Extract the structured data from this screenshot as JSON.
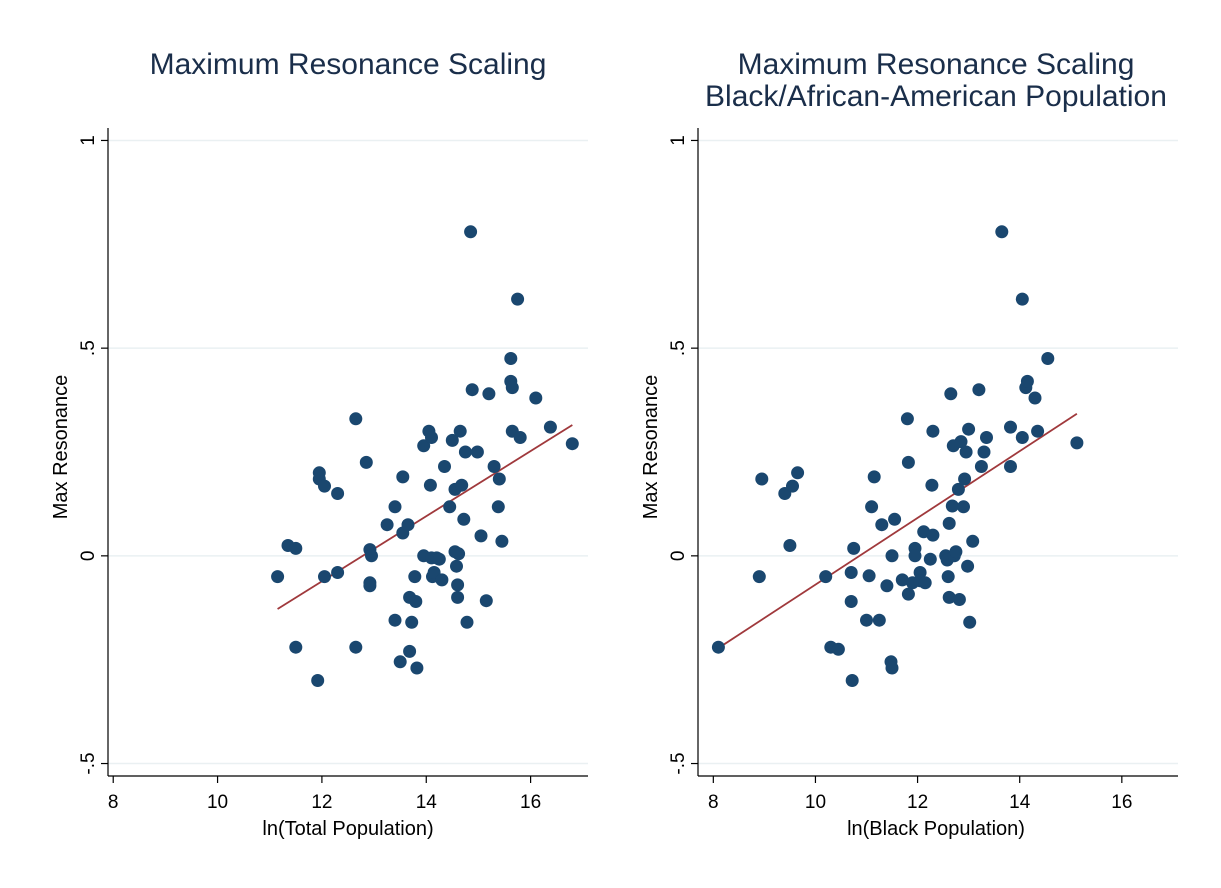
{
  "chart_data": [
    {
      "type": "scatter",
      "title": "Maximum Resonance Scaling",
      "subtitle": "",
      "xlabel": "ln(Total Population)",
      "ylabel": "Max Resonance",
      "xlim": [
        7.9,
        17.1
      ],
      "ylim": [
        -0.53,
        1.03
      ],
      "xticks": [
        8,
        10,
        12,
        14,
        16
      ],
      "xtick_labels": [
        "8",
        "10",
        "12",
        "14",
        "16"
      ],
      "yticks": [
        -0.5,
        0,
        0.5,
        1
      ],
      "ytick_labels": [
        "-.5",
        "0",
        ".5",
        "1"
      ],
      "grid": true,
      "colors": {
        "points": "#1a476f",
        "fit": "#a0393c"
      },
      "points": [
        [
          11.15,
          -0.05
        ],
        [
          11.35,
          0.025
        ],
        [
          11.5,
          0.018
        ],
        [
          11.5,
          -0.22
        ],
        [
          11.95,
          0.2
        ],
        [
          11.95,
          0.185
        ],
        [
          12.05,
          0.168
        ],
        [
          12.05,
          -0.05
        ],
        [
          12.3,
          0.15
        ],
        [
          12.3,
          -0.04
        ],
        [
          11.92,
          -0.3
        ],
        [
          12.65,
          0.33
        ],
        [
          12.65,
          -0.22
        ],
        [
          12.85,
          0.225
        ],
        [
          12.92,
          -0.065
        ],
        [
          12.92,
          -0.072
        ],
        [
          12.92,
          0.015
        ],
        [
          12.95,
          0.0
        ],
        [
          13.25,
          0.075
        ],
        [
          13.4,
          0.118
        ],
        [
          13.4,
          -0.155
        ],
        [
          13.5,
          -0.255
        ],
        [
          13.55,
          0.19
        ],
        [
          13.55,
          0.055
        ],
        [
          13.65,
          0.075
        ],
        [
          13.68,
          -0.1
        ],
        [
          13.68,
          -0.23
        ],
        [
          13.72,
          -0.16
        ],
        [
          13.78,
          -0.05
        ],
        [
          13.8,
          -0.11
        ],
        [
          13.82,
          -0.27
        ],
        [
          13.95,
          0.265
        ],
        [
          13.95,
          0.0
        ],
        [
          14.05,
          0.3
        ],
        [
          14.08,
          0.17
        ],
        [
          14.1,
          0.285
        ],
        [
          14.1,
          -0.005
        ],
        [
          14.12,
          -0.05
        ],
        [
          14.15,
          -0.04
        ],
        [
          14.2,
          -0.005
        ],
        [
          14.25,
          -0.008
        ],
        [
          14.3,
          -0.058
        ],
        [
          14.35,
          0.215
        ],
        [
          14.45,
          0.118
        ],
        [
          14.5,
          0.278
        ],
        [
          14.55,
          0.16
        ],
        [
          14.55,
          0.01
        ],
        [
          14.58,
          -0.025
        ],
        [
          14.6,
          -0.07
        ],
        [
          14.6,
          -0.1
        ],
        [
          14.62,
          0.005
        ],
        [
          14.65,
          0.3
        ],
        [
          14.68,
          0.17
        ],
        [
          14.72,
          0.088
        ],
        [
          14.75,
          0.25
        ],
        [
          14.78,
          -0.16
        ],
        [
          14.85,
          0.78
        ],
        [
          14.88,
          0.4
        ],
        [
          14.98,
          0.25
        ],
        [
          15.05,
          0.048
        ],
        [
          15.15,
          -0.108
        ],
        [
          15.2,
          0.39
        ],
        [
          15.3,
          0.215
        ],
        [
          15.38,
          0.118
        ],
        [
          15.4,
          0.185
        ],
        [
          15.45,
          0.035
        ],
        [
          15.62,
          0.475
        ],
        [
          15.62,
          0.42
        ],
        [
          15.65,
          0.405
        ],
        [
          15.65,
          0.3
        ],
        [
          15.75,
          0.618
        ],
        [
          15.8,
          0.285
        ],
        [
          16.1,
          0.38
        ],
        [
          16.38,
          0.31
        ],
        [
          16.8,
          0.27
        ]
      ],
      "fit_line": {
        "x": [
          11.15,
          16.8
        ],
        "y": [
          -0.128,
          0.315
        ]
      }
    },
    {
      "type": "scatter",
      "title": "Maximum Resonance Scaling",
      "subtitle": "Black/African-American Population",
      "xlabel": "ln(Black Population)",
      "ylabel": "Max Resonance",
      "xlim": [
        7.7,
        17.1
      ],
      "ylim": [
        -0.53,
        1.03
      ],
      "xticks": [
        8,
        10,
        12,
        14,
        16
      ],
      "xtick_labels": [
        "8",
        "10",
        "12",
        "14",
        "16"
      ],
      "yticks": [
        -0.5,
        0,
        0.5,
        1
      ],
      "ytick_labels": [
        "-.5",
        "0",
        ".5",
        "1"
      ],
      "grid": true,
      "colors": {
        "points": "#1a476f",
        "fit": "#a0393c"
      },
      "points": [
        [
          8.1,
          -0.22
        ],
        [
          8.9,
          -0.05
        ],
        [
          8.95,
          0.185
        ],
        [
          9.4,
          0.15
        ],
        [
          9.5,
          0.025
        ],
        [
          9.55,
          0.168
        ],
        [
          9.65,
          0.2
        ],
        [
          10.2,
          -0.05
        ],
        [
          10.3,
          -0.22
        ],
        [
          10.45,
          -0.225
        ],
        [
          10.7,
          -0.04
        ],
        [
          10.7,
          -0.11
        ],
        [
          10.72,
          -0.3
        ],
        [
          10.75,
          0.018
        ],
        [
          11.0,
          -0.155
        ],
        [
          11.05,
          -0.048
        ],
        [
          11.1,
          0.118
        ],
        [
          11.15,
          0.19
        ],
        [
          11.25,
          -0.155
        ],
        [
          11.3,
          0.075
        ],
        [
          11.4,
          -0.072
        ],
        [
          11.48,
          -0.255
        ],
        [
          11.5,
          -0.27
        ],
        [
          11.5,
          0.0
        ],
        [
          11.55,
          0.088
        ],
        [
          11.7,
          -0.058
        ],
        [
          11.8,
          0.33
        ],
        [
          11.82,
          0.225
        ],
        [
          11.82,
          -0.092
        ],
        [
          11.9,
          -0.065
        ],
        [
          11.95,
          0.018
        ],
        [
          11.95,
          0.0
        ],
        [
          12.05,
          -0.04
        ],
        [
          12.05,
          -0.06
        ],
        [
          12.12,
          0.058
        ],
        [
          12.15,
          -0.065
        ],
        [
          12.25,
          -0.008
        ],
        [
          12.28,
          0.17
        ],
        [
          12.3,
          0.3
        ],
        [
          12.3,
          0.05
        ],
        [
          12.55,
          0.0
        ],
        [
          12.58,
          -0.01
        ],
        [
          12.6,
          -0.05
        ],
        [
          12.62,
          0.078
        ],
        [
          12.62,
          -0.1
        ],
        [
          12.65,
          0.39
        ],
        [
          12.68,
          0.12
        ],
        [
          12.7,
          0.265
        ],
        [
          12.72,
          0.0
        ],
        [
          12.75,
          0.01
        ],
        [
          12.8,
          0.16
        ],
        [
          12.82,
          -0.105
        ],
        [
          12.85,
          0.275
        ],
        [
          12.9,
          0.118
        ],
        [
          12.92,
          0.185
        ],
        [
          12.95,
          0.25
        ],
        [
          12.98,
          -0.025
        ],
        [
          13.0,
          0.305
        ],
        [
          13.02,
          -0.16
        ],
        [
          13.08,
          0.035
        ],
        [
          13.2,
          0.4
        ],
        [
          13.25,
          0.215
        ],
        [
          13.3,
          0.25
        ],
        [
          13.35,
          0.285
        ],
        [
          13.65,
          0.78
        ],
        [
          13.82,
          0.31
        ],
        [
          13.82,
          0.215
        ],
        [
          14.05,
          0.285
        ],
        [
          14.05,
          0.618
        ],
        [
          14.12,
          0.405
        ],
        [
          14.15,
          0.42
        ],
        [
          14.3,
          0.38
        ],
        [
          14.35,
          0.3
        ],
        [
          14.55,
          0.475
        ],
        [
          15.12,
          0.272
        ]
      ],
      "fit_line": {
        "x": [
          8.1,
          15.12
        ],
        "y": [
          -0.222,
          0.342
        ]
      }
    }
  ]
}
